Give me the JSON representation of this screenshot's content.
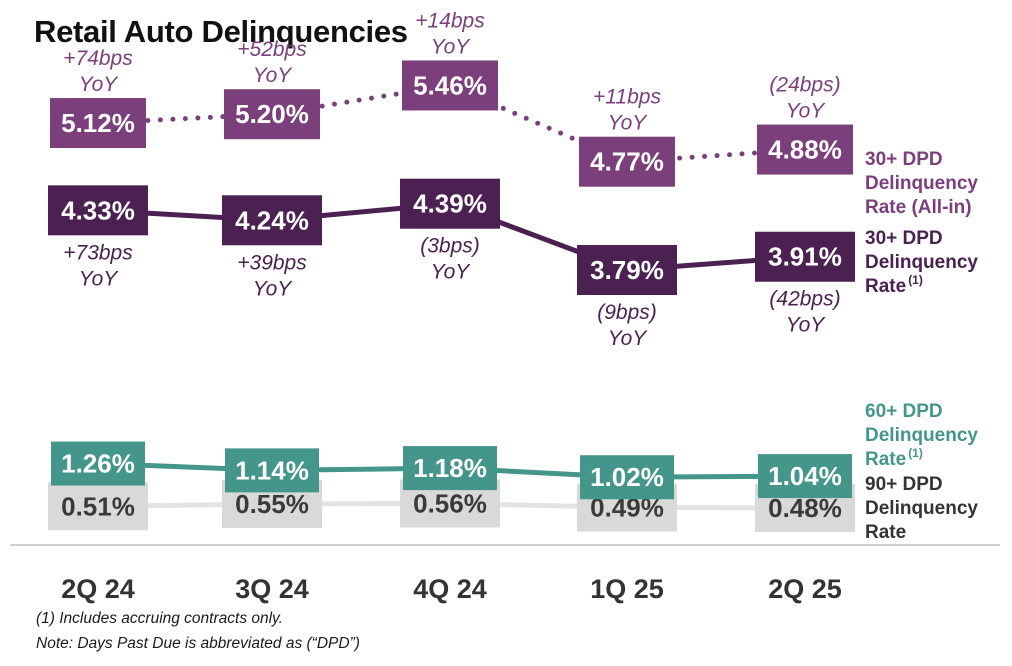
{
  "title": "Retail Auto Delinquencies",
  "footnotes": [
    "(1) Includes accruing contracts only.",
    "Note: Days Past Due is abbreviated as (“DPD”)"
  ],
  "colors": {
    "all_in": "#7b3f7c",
    "dpd30": "#4a2150",
    "dpd60": "#44968a",
    "dpd90_box": "#d9d9d9",
    "dpd90_line": "#e3e3e3",
    "dpd90_text": "#3a3a3a",
    "legend_gray": "#333333"
  },
  "chart_data": {
    "type": "line",
    "categories": [
      "2Q 24",
      "3Q 24",
      "4Q 24",
      "1Q 25",
      "2Q 25"
    ],
    "unit": "%",
    "series": [
      {
        "name": "30+ DPD Delinquency Rate (All-in)",
        "legend_lines": [
          "30+ DPD",
          "Delinquency",
          "Rate (All-in)"
        ],
        "values": [
          5.12,
          5.2,
          5.46,
          4.77,
          4.88
        ],
        "labels": [
          "5.12%",
          "5.20%",
          "5.46%",
          "4.77%",
          "4.88%"
        ],
        "yoy": [
          [
            "+74bps",
            "YoY"
          ],
          [
            "+52bps",
            "YoY"
          ],
          [
            "+14bps",
            "YoY"
          ],
          [
            "+11bps",
            "YoY"
          ],
          [
            "(24bps)",
            "YoY"
          ]
        ],
        "line_style": "dotted"
      },
      {
        "name": "30+ DPD Delinquency Rate(1)",
        "legend_lines": [
          "30+ DPD",
          "Delinquency",
          "Rate"
        ],
        "legend_sup": "(1)",
        "values": [
          4.33,
          4.24,
          4.39,
          3.79,
          3.91
        ],
        "labels": [
          "4.33%",
          "4.24%",
          "4.39%",
          "3.79%",
          "3.91%"
        ],
        "yoy": [
          [
            "+73bps",
            "YoY"
          ],
          [
            "+39bps",
            "YoY"
          ],
          [
            "(3bps)",
            "YoY"
          ],
          [
            "(9bps)",
            "YoY"
          ],
          [
            "(42bps)",
            "YoY"
          ]
        ],
        "line_style": "solid"
      },
      {
        "name": "60+ DPD Delinquency Rate(1)",
        "legend_lines": [
          "60+ DPD",
          "Delinquency",
          "Rate"
        ],
        "legend_sup": "(1)",
        "values": [
          1.26,
          1.14,
          1.18,
          1.02,
          1.04
        ],
        "labels": [
          "1.26%",
          "1.14%",
          "1.18%",
          "1.02%",
          "1.04%"
        ],
        "line_style": "solid"
      },
      {
        "name": "90+ DPD Delinquency Rate",
        "legend_lines": [
          "90+ DPD",
          "Delinquency",
          "Rate"
        ],
        "values": [
          0.51,
          0.55,
          0.56,
          0.49,
          0.48
        ],
        "labels": [
          "0.51%",
          "0.55%",
          "0.56%",
          "0.49%",
          "0.48%"
        ],
        "line_style": "solid"
      }
    ]
  }
}
